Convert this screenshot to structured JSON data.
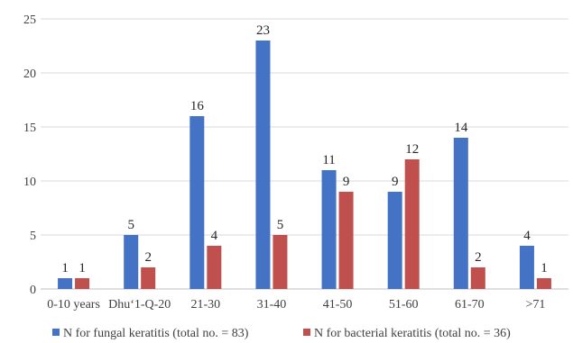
{
  "chart_data": {
    "type": "bar",
    "categories": [
      "0-10 years",
      "Dhu‘1-Q-20",
      "21-30",
      "31-40",
      "41-50",
      "51-60",
      "61-70",
      ">71"
    ],
    "series": [
      {
        "name": "N for fungal keratitis (total no. = 83)",
        "values": [
          1,
          5,
          16,
          23,
          11,
          9,
          14,
          4
        ],
        "color": "#4472c4"
      },
      {
        "name": "N for bacterial keratitis (total no. = 36)",
        "values": [
          1,
          2,
          4,
          5,
          9,
          12,
          2,
          1
        ],
        "color": "#c0504d"
      }
    ],
    "yticks": [
      "0",
      "5",
      "10",
      "15",
      "20",
      "25"
    ],
    "ylim": [
      0,
      25
    ],
    "grid": true,
    "legend_position": "bottom"
  }
}
